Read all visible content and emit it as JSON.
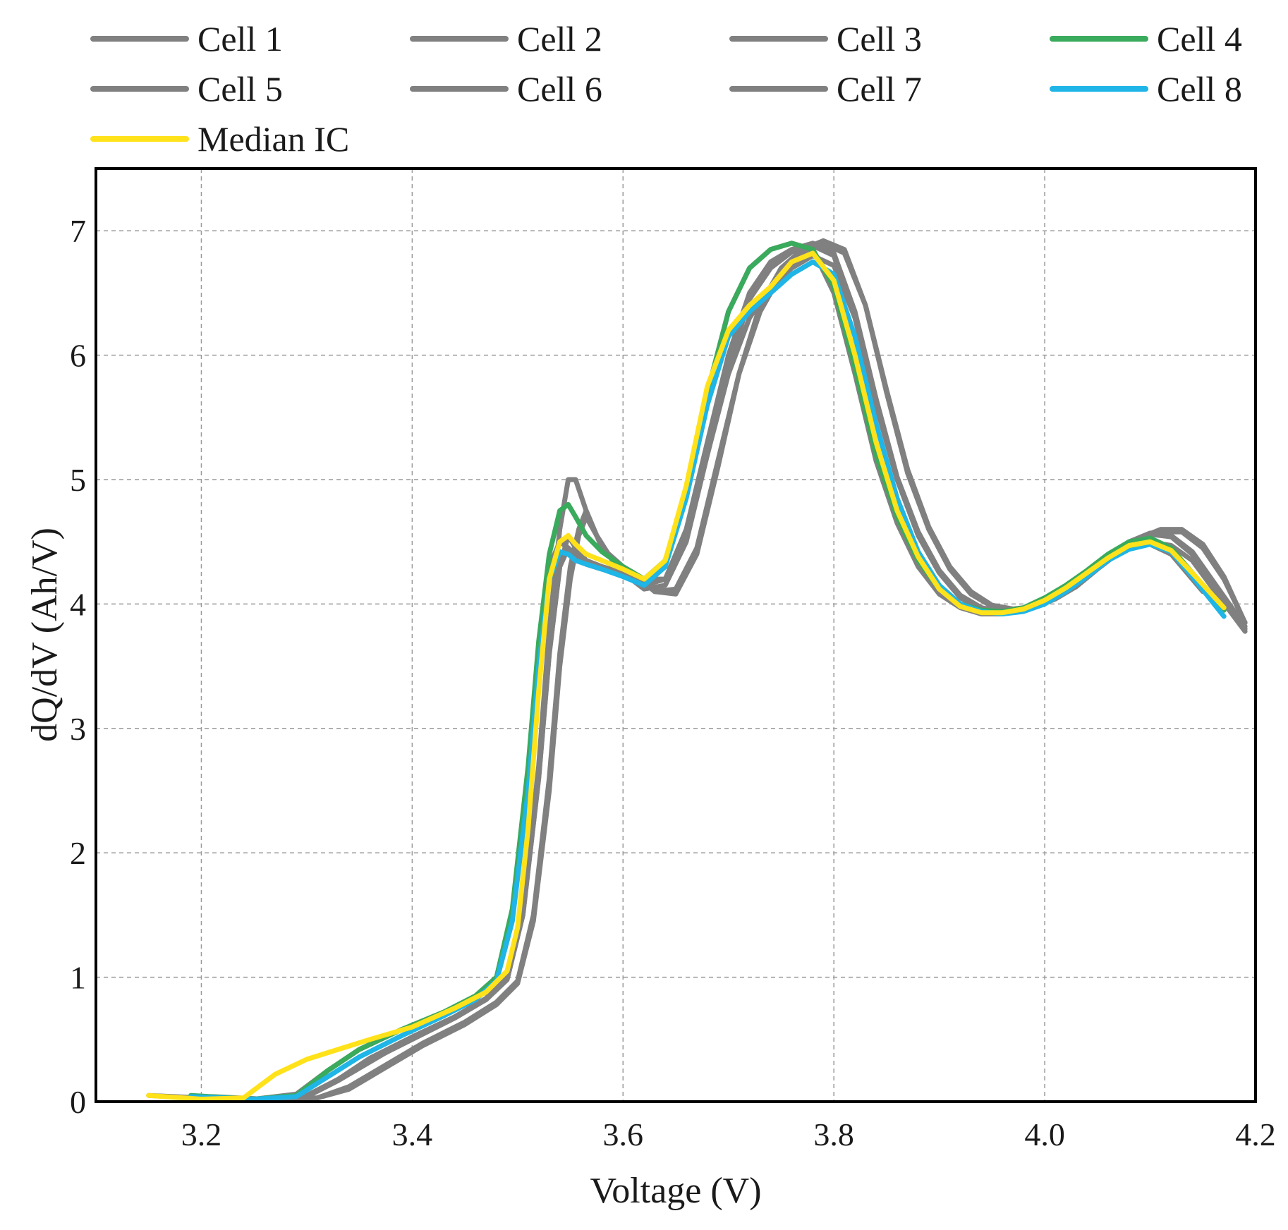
{
  "chart_data": {
    "type": "line",
    "title": "",
    "xlabel": "Voltage (V)",
    "ylabel": "dQ/dV (Ah/V)",
    "xlim": [
      3.1,
      4.2
    ],
    "ylim": [
      0,
      7.5
    ],
    "xticks": [
      3.2,
      3.4,
      3.6,
      3.8,
      4.0,
      4.2
    ],
    "xtick_labels": [
      "3.2",
      "3.4",
      "3.6",
      "3.8",
      "4.0",
      "4.2"
    ],
    "yticks": [
      0,
      1,
      2,
      3,
      4,
      5,
      6,
      7
    ],
    "ytick_labels": [
      "0",
      "1",
      "2",
      "3",
      "4",
      "5",
      "6",
      "7"
    ],
    "grid": true,
    "legend_position": "top",
    "series": [
      {
        "name": "Cell 1",
        "color": "#808080",
        "x": [
          3.21,
          3.26,
          3.3,
          3.33,
          3.36,
          3.4,
          3.44,
          3.47,
          3.49,
          3.505,
          3.52,
          3.53,
          3.54,
          3.548,
          3.555,
          3.565,
          3.58,
          3.6,
          3.62,
          3.64,
          3.66,
          3.68,
          3.7,
          3.72,
          3.74,
          3.76,
          3.78,
          3.8,
          3.82,
          3.84,
          3.86,
          3.88,
          3.9,
          3.92,
          3.94,
          3.96,
          3.98,
          4.0,
          4.02,
          4.04,
          4.06,
          4.08,
          4.1,
          4.12,
          4.14,
          4.16,
          4.19
        ],
        "y": [
          0.04,
          0.02,
          0.05,
          0.18,
          0.33,
          0.5,
          0.67,
          0.82,
          0.98,
          1.5,
          2.6,
          3.6,
          4.3,
          4.55,
          4.45,
          4.35,
          4.3,
          4.25,
          4.12,
          4.15,
          4.5,
          5.2,
          5.9,
          6.45,
          6.7,
          6.83,
          6.88,
          6.8,
          6.3,
          5.6,
          5.0,
          4.55,
          4.25,
          4.05,
          3.96,
          3.93,
          3.95,
          4.02,
          4.12,
          4.25,
          4.38,
          4.5,
          4.56,
          4.54,
          4.4,
          4.15,
          3.8
        ]
      },
      {
        "name": "Cell 2",
        "color": "#808080",
        "x": [
          3.21,
          3.26,
          3.3,
          3.33,
          3.36,
          3.4,
          3.44,
          3.47,
          3.49,
          3.505,
          3.52,
          3.53,
          3.54,
          3.548,
          3.555,
          3.565,
          3.58,
          3.6,
          3.62,
          3.64,
          3.66,
          3.68,
          3.7,
          3.72,
          3.74,
          3.76,
          3.78,
          3.8,
          3.82,
          3.84,
          3.86,
          3.88,
          3.9,
          3.92,
          3.94,
          3.96,
          3.98,
          4.0,
          4.02,
          4.04,
          4.06,
          4.08,
          4.1,
          4.12,
          4.14,
          4.16,
          4.19
        ],
        "y": [
          0.03,
          0.02,
          0.04,
          0.17,
          0.32,
          0.52,
          0.68,
          0.83,
          1.0,
          1.55,
          2.7,
          3.8,
          4.6,
          5.0,
          5.0,
          4.75,
          4.45,
          4.3,
          4.2,
          4.2,
          4.6,
          5.3,
          6.0,
          6.5,
          6.75,
          6.85,
          6.9,
          6.82,
          6.35,
          5.65,
          5.02,
          4.58,
          4.27,
          4.07,
          3.97,
          3.94,
          3.96,
          4.03,
          4.13,
          4.26,
          4.39,
          4.5,
          4.57,
          4.55,
          4.42,
          4.18,
          3.82
        ]
      },
      {
        "name": "Cell 3",
        "color": "#808080",
        "x": [
          3.21,
          3.27,
          3.31,
          3.34,
          3.37,
          3.41,
          3.45,
          3.48,
          3.5,
          3.515,
          3.53,
          3.54,
          3.55,
          3.558,
          3.565,
          3.575,
          3.59,
          3.61,
          3.63,
          3.65,
          3.67,
          3.69,
          3.71,
          3.73,
          3.75,
          3.77,
          3.79,
          3.81,
          3.83,
          3.85,
          3.87,
          3.89,
          3.91,
          3.93,
          3.95,
          3.97,
          3.99,
          4.01,
          4.03,
          4.05,
          4.07,
          4.09,
          4.11,
          4.13,
          4.15,
          4.17,
          4.19
        ],
        "y": [
          0.03,
          0.02,
          0.03,
          0.12,
          0.27,
          0.47,
          0.64,
          0.8,
          0.97,
          1.5,
          2.6,
          3.6,
          4.3,
          4.6,
          4.75,
          4.55,
          4.35,
          4.25,
          4.1,
          4.08,
          4.4,
          5.1,
          5.85,
          6.4,
          6.7,
          6.85,
          6.92,
          6.85,
          6.4,
          5.7,
          5.05,
          4.6,
          4.28,
          4.08,
          3.98,
          3.95,
          3.97,
          4.04,
          4.14,
          4.28,
          4.41,
          4.52,
          4.58,
          4.58,
          4.45,
          4.2,
          3.85
        ]
      },
      {
        "name": "Cell 4",
        "color": "#3aaa5c",
        "x": [
          3.19,
          3.25,
          3.29,
          3.32,
          3.35,
          3.39,
          3.43,
          3.46,
          3.48,
          3.495,
          3.51,
          3.52,
          3.53,
          3.54,
          3.548,
          3.555,
          3.565,
          3.58,
          3.6,
          3.62,
          3.64,
          3.66,
          3.68,
          3.7,
          3.72,
          3.74,
          3.76,
          3.78,
          3.8,
          3.82,
          3.84,
          3.86,
          3.88,
          3.9,
          3.92,
          3.94,
          3.96,
          3.98,
          4.0,
          4.02,
          4.04,
          4.06,
          4.08,
          4.1,
          4.12,
          4.14,
          4.17
        ],
        "y": [
          0.05,
          0.02,
          0.05,
          0.25,
          0.42,
          0.58,
          0.72,
          0.85,
          1.0,
          1.55,
          2.7,
          3.7,
          4.4,
          4.75,
          4.8,
          4.7,
          4.55,
          4.42,
          4.3,
          4.2,
          4.35,
          4.9,
          5.7,
          6.35,
          6.7,
          6.85,
          6.9,
          6.85,
          6.55,
          5.9,
          5.2,
          4.7,
          4.35,
          4.12,
          4.0,
          3.95,
          3.94,
          3.97,
          4.05,
          4.15,
          4.27,
          4.4,
          4.5,
          4.53,
          4.45,
          4.25,
          3.95
        ]
      },
      {
        "name": "Cell 5",
        "color": "#808080",
        "x": [
          3.15,
          3.2,
          3.25,
          3.29,
          3.32,
          3.35,
          3.39,
          3.43,
          3.46,
          3.48,
          3.495,
          3.51,
          3.52,
          3.53,
          3.54,
          3.548,
          3.555,
          3.565,
          3.58,
          3.6,
          3.62,
          3.64,
          3.66,
          3.68,
          3.7,
          3.72,
          3.74,
          3.76,
          3.78,
          3.8,
          3.82,
          3.84,
          3.86,
          3.88,
          3.9,
          3.92,
          3.94,
          3.96,
          3.98,
          4.0,
          4.02,
          4.04,
          4.06,
          4.08,
          4.1,
          4.12,
          4.15
        ],
        "y": [
          0.05,
          0.03,
          0.02,
          0.06,
          0.25,
          0.42,
          0.58,
          0.72,
          0.85,
          1.0,
          1.5,
          2.6,
          3.6,
          4.3,
          4.5,
          4.45,
          4.4,
          4.35,
          4.3,
          4.25,
          4.2,
          4.35,
          4.9,
          5.7,
          6.35,
          6.7,
          6.85,
          6.9,
          6.85,
          6.5,
          5.85,
          5.15,
          4.65,
          4.3,
          4.08,
          3.97,
          3.92,
          3.92,
          3.96,
          4.04,
          4.14,
          4.26,
          4.38,
          4.46,
          4.48,
          4.4,
          4.1
        ]
      },
      {
        "name": "Cell 6",
        "color": "#808080",
        "x": [
          3.2,
          3.26,
          3.3,
          3.33,
          3.36,
          3.4,
          3.44,
          3.47,
          3.49,
          3.505,
          3.52,
          3.53,
          3.54,
          3.548,
          3.555,
          3.565,
          3.58,
          3.6,
          3.62,
          3.64,
          3.66,
          3.68,
          3.7,
          3.72,
          3.74,
          3.76,
          3.78,
          3.8,
          3.82,
          3.84,
          3.86,
          3.88,
          3.9,
          3.92,
          3.94,
          3.96,
          3.98,
          4.0,
          4.02,
          4.04,
          4.06,
          4.08,
          4.1,
          4.12,
          4.14,
          4.16,
          4.19
        ],
        "y": [
          0.03,
          0.02,
          0.04,
          0.18,
          0.35,
          0.52,
          0.68,
          0.82,
          0.98,
          1.5,
          2.6,
          3.6,
          4.3,
          4.45,
          4.4,
          4.32,
          4.28,
          4.25,
          4.15,
          4.2,
          4.55,
          5.2,
          5.85,
          6.3,
          6.55,
          6.7,
          6.8,
          6.72,
          6.3,
          5.6,
          5.0,
          4.56,
          4.26,
          4.06,
          3.96,
          3.93,
          3.95,
          4.02,
          4.12,
          4.24,
          4.36,
          4.46,
          4.5,
          4.47,
          4.35,
          4.12,
          3.78
        ]
      },
      {
        "name": "Cell 7",
        "color": "#808080",
        "x": [
          3.21,
          3.27,
          3.31,
          3.34,
          3.37,
          3.41,
          3.45,
          3.48,
          3.5,
          3.515,
          3.53,
          3.54,
          3.55,
          3.558,
          3.565,
          3.575,
          3.59,
          3.61,
          3.63,
          3.65,
          3.67,
          3.69,
          3.71,
          3.73,
          3.75,
          3.77,
          3.79,
          3.81,
          3.83,
          3.85,
          3.87,
          3.89,
          3.91,
          3.93,
          3.95,
          3.97,
          3.99,
          4.01,
          4.03,
          4.05,
          4.07,
          4.09,
          4.11,
          4.13,
          4.15,
          4.17,
          4.19
        ],
        "y": [
          0.03,
          0.02,
          0.03,
          0.1,
          0.25,
          0.45,
          0.62,
          0.78,
          0.95,
          1.45,
          2.5,
          3.5,
          4.2,
          4.55,
          4.7,
          4.55,
          4.35,
          4.25,
          4.1,
          4.12,
          4.45,
          5.15,
          5.85,
          6.35,
          6.65,
          6.82,
          6.9,
          6.82,
          6.4,
          5.72,
          5.08,
          4.62,
          4.3,
          4.1,
          3.99,
          3.96,
          3.98,
          4.05,
          4.15,
          4.29,
          4.42,
          4.53,
          4.6,
          4.6,
          4.48,
          4.22,
          3.85
        ]
      },
      {
        "name": "Cell 8",
        "color": "#1fb5e6",
        "x": [
          3.19,
          3.25,
          3.29,
          3.32,
          3.35,
          3.39,
          3.43,
          3.46,
          3.48,
          3.495,
          3.51,
          3.52,
          3.53,
          3.54,
          3.548,
          3.555,
          3.565,
          3.58,
          3.6,
          3.62,
          3.64,
          3.66,
          3.68,
          3.7,
          3.72,
          3.74,
          3.76,
          3.78,
          3.8,
          3.82,
          3.84,
          3.86,
          3.88,
          3.9,
          3.92,
          3.94,
          3.96,
          3.98,
          4.0,
          4.02,
          4.04,
          4.06,
          4.08,
          4.1,
          4.12,
          4.14,
          4.17
        ],
        "y": [
          0.04,
          0.02,
          0.04,
          0.2,
          0.36,
          0.53,
          0.69,
          0.82,
          0.97,
          1.45,
          2.5,
          3.5,
          4.2,
          4.42,
          4.4,
          4.35,
          4.32,
          4.28,
          4.22,
          4.15,
          4.3,
          4.85,
          5.6,
          6.15,
          6.35,
          6.5,
          6.65,
          6.75,
          6.65,
          6.15,
          5.45,
          4.85,
          4.42,
          4.15,
          4.0,
          3.94,
          3.92,
          3.94,
          4.0,
          4.1,
          4.22,
          4.35,
          4.44,
          4.48,
          4.42,
          4.22,
          3.9
        ]
      },
      {
        "name": "Median IC",
        "color": "#ffe21a",
        "x": [
          3.15,
          3.2,
          3.24,
          3.27,
          3.3,
          3.33,
          3.36,
          3.4,
          3.44,
          3.47,
          3.49,
          3.5,
          3.51,
          3.52,
          3.53,
          3.54,
          3.548,
          3.555,
          3.565,
          3.58,
          3.6,
          3.62,
          3.64,
          3.66,
          3.68,
          3.7,
          3.72,
          3.74,
          3.76,
          3.78,
          3.8,
          3.82,
          3.84,
          3.86,
          3.88,
          3.9,
          3.92,
          3.94,
          3.96,
          3.98,
          4.0,
          4.02,
          4.04,
          4.06,
          4.08,
          4.1,
          4.12,
          4.14,
          4.17
        ],
        "y": [
          0.05,
          0.02,
          0.03,
          0.22,
          0.34,
          0.42,
          0.5,
          0.6,
          0.75,
          0.88,
          1.05,
          1.4,
          2.2,
          3.3,
          4.2,
          4.5,
          4.55,
          4.48,
          4.4,
          4.35,
          4.28,
          4.2,
          4.35,
          4.95,
          5.75,
          6.2,
          6.4,
          6.55,
          6.75,
          6.82,
          6.6,
          6.0,
          5.3,
          4.75,
          4.38,
          4.12,
          3.98,
          3.93,
          3.93,
          3.96,
          4.03,
          4.13,
          4.25,
          4.37,
          4.47,
          4.5,
          4.43,
          4.25,
          3.97
        ]
      }
    ]
  }
}
